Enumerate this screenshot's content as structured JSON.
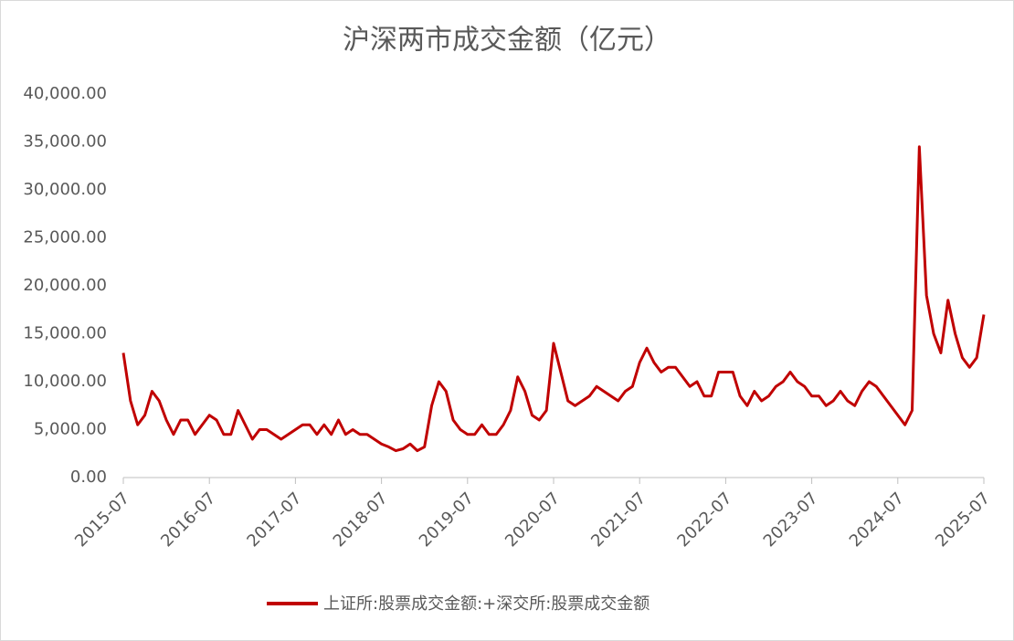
{
  "chart_data": {
    "type": "line",
    "title": "沪深两市成交金额（亿元）",
    "x": [
      "2015-07",
      "2015-08",
      "2015-09",
      "2015-10",
      "2015-11",
      "2015-12",
      "2016-01",
      "2016-02",
      "2016-03",
      "2016-04",
      "2016-05",
      "2016-06",
      "2016-07",
      "2016-08",
      "2016-09",
      "2016-10",
      "2016-11",
      "2016-12",
      "2017-01",
      "2017-02",
      "2017-03",
      "2017-04",
      "2017-05",
      "2017-06",
      "2017-07",
      "2017-08",
      "2017-09",
      "2017-10",
      "2017-11",
      "2017-12",
      "2018-01",
      "2018-02",
      "2018-03",
      "2018-04",
      "2018-05",
      "2018-06",
      "2018-07",
      "2018-08",
      "2018-09",
      "2018-10",
      "2018-11",
      "2018-12",
      "2019-01",
      "2019-02",
      "2019-03",
      "2019-04",
      "2019-05",
      "2019-06",
      "2019-07",
      "2019-08",
      "2019-09",
      "2019-10",
      "2019-11",
      "2019-12",
      "2020-01",
      "2020-02",
      "2020-03",
      "2020-04",
      "2020-05",
      "2020-06",
      "2020-07",
      "2020-08",
      "2020-09",
      "2020-10",
      "2020-11",
      "2020-12",
      "2021-01",
      "2021-02",
      "2021-03",
      "2021-04",
      "2021-05",
      "2021-06",
      "2021-07",
      "2021-08",
      "2021-09",
      "2021-10",
      "2021-11",
      "2021-12",
      "2022-01",
      "2022-02",
      "2022-03",
      "2022-04",
      "2022-05",
      "2022-06",
      "2022-07",
      "2022-08",
      "2022-09",
      "2022-10",
      "2022-11",
      "2022-12",
      "2023-01",
      "2023-02",
      "2023-03",
      "2023-04",
      "2023-05",
      "2023-06",
      "2023-07",
      "2023-08",
      "2023-09",
      "2023-10",
      "2023-11",
      "2023-12",
      "2024-01",
      "2024-02",
      "2024-03",
      "2024-04",
      "2024-05",
      "2024-06",
      "2024-07",
      "2024-08",
      "2024-09",
      "2024-10",
      "2024-11",
      "2024-12",
      "2025-01",
      "2025-02",
      "2025-03",
      "2025-04",
      "2025-05",
      "2025-06",
      "2025-07"
    ],
    "series": [
      {
        "name": "上证所:股票成交金额:+深交所:股票成交金额",
        "color": "#c00000",
        "values": [
          13000,
          8000,
          5500,
          6500,
          9000,
          8000,
          6000,
          4500,
          6000,
          6000,
          4500,
          5500,
          6500,
          6000,
          4500,
          4500,
          7000,
          5500,
          4000,
          5000,
          5000,
          4500,
          4000,
          4500,
          5000,
          5500,
          5500,
          4500,
          5500,
          4500,
          6000,
          4500,
          5000,
          4500,
          4500,
          4000,
          3500,
          3200,
          2800,
          3000,
          3500,
          2800,
          3200,
          7500,
          10000,
          9000,
          6000,
          5000,
          4500,
          4500,
          5500,
          4500,
          4500,
          5500,
          7000,
          10500,
          9000,
          6500,
          6000,
          7000,
          14000,
          11000,
          8000,
          7500,
          8000,
          8500,
          9500,
          9000,
          8500,
          8000,
          9000,
          9500,
          12000,
          13500,
          12000,
          11000,
          11500,
          11500,
          10500,
          9500,
          10000,
          8500,
          8500,
          11000,
          11000,
          11000,
          8500,
          7500,
          9000,
          8000,
          8500,
          9500,
          10000,
          11000,
          10000,
          9500,
          8500,
          8500,
          7500,
          8000,
          9000,
          8000,
          7500,
          9000,
          10000,
          9500,
          8500,
          7500,
          6500,
          5500,
          7000,
          34500,
          19000,
          15000,
          13000,
          18500,
          15000,
          12500,
          11500,
          12500,
          17000
        ]
      }
    ],
    "xlim": [
      "2015-07",
      "2025-07"
    ],
    "xticks": [
      "2015-07",
      "2016-07",
      "2017-07",
      "2018-07",
      "2019-07",
      "2020-07",
      "2021-07",
      "2022-07",
      "2023-07",
      "2024-07",
      "2025-07"
    ],
    "ylim": [
      0,
      40000
    ],
    "yticks": [
      {
        "value": 0,
        "label": "0.00"
      },
      {
        "value": 5000,
        "label": "5,000.00"
      },
      {
        "value": 10000,
        "label": "10,000.00"
      },
      {
        "value": 15000,
        "label": "15,000.00"
      },
      {
        "value": 20000,
        "label": "20,000.00"
      },
      {
        "value": 25000,
        "label": "25,000.00"
      },
      {
        "value": 30000,
        "label": "30,000.00"
      },
      {
        "value": 35000,
        "label": "35,000.00"
      },
      {
        "value": 40000,
        "label": "40,000.00"
      }
    ],
    "legend": "bottom"
  }
}
